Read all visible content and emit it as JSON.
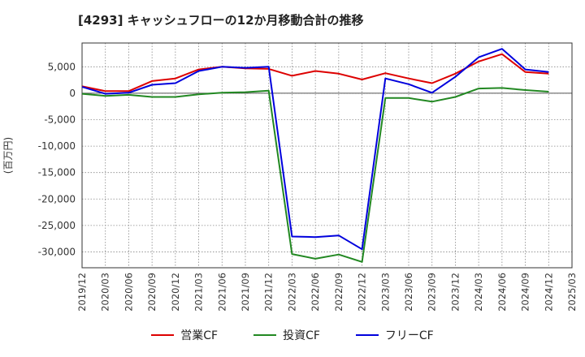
{
  "chart_data": {
    "type": "line",
    "title": "[4293]  キャッシュフローの12か月移動合計の推移",
    "ylabel": "(百万円)",
    "xlabel": "",
    "ylim": [
      -33000,
      9500
    ],
    "yticks": [
      5000,
      0,
      -5000,
      -10000,
      -15000,
      -20000,
      -25000,
      -30000
    ],
    "ytick_labels": [
      "5,000",
      "0",
      "-5,000",
      "-10,000",
      "-15,000",
      "-20,000",
      "-25,000",
      "-30,000"
    ],
    "grid": true,
    "legend_position": "bottom",
    "categories": [
      "2019/12",
      "2020/03",
      "2020/06",
      "2020/09",
      "2020/12",
      "2021/03",
      "2021/06",
      "2021/09",
      "2021/12",
      "2022/03",
      "2022/06",
      "2022/09",
      "2022/12",
      "2023/03",
      "2023/06",
      "2023/09",
      "2023/12",
      "2024/03",
      "2024/06",
      "2024/09",
      "2024/12",
      "2025/03"
    ],
    "series": [
      {
        "name": "営業CF",
        "color": "#dd0000",
        "values": [
          1300,
          400,
          400,
          2300,
          2800,
          4500,
          5000,
          4700,
          4600,
          3300,
          4200,
          3700,
          2600,
          3800,
          2800,
          1900,
          3700,
          6000,
          7400,
          4000,
          3700,
          null
        ]
      },
      {
        "name": "投資CF",
        "color": "#228822",
        "values": [
          -100,
          -500,
          -300,
          -700,
          -700,
          -200,
          100,
          200,
          500,
          -30400,
          -31300,
          -30500,
          -31900,
          -900,
          -900,
          -1600,
          -700,
          900,
          1000,
          600,
          300,
          null
        ]
      },
      {
        "name": "フリーCF",
        "color": "#0000dd",
        "values": [
          1200,
          -100,
          100,
          1600,
          1900,
          4200,
          5000,
          4800,
          5000,
          -27100,
          -27200,
          -26900,
          -29500,
          2800,
          1700,
          100,
          3100,
          6800,
          8400,
          4500,
          4000,
          null
        ]
      }
    ]
  }
}
